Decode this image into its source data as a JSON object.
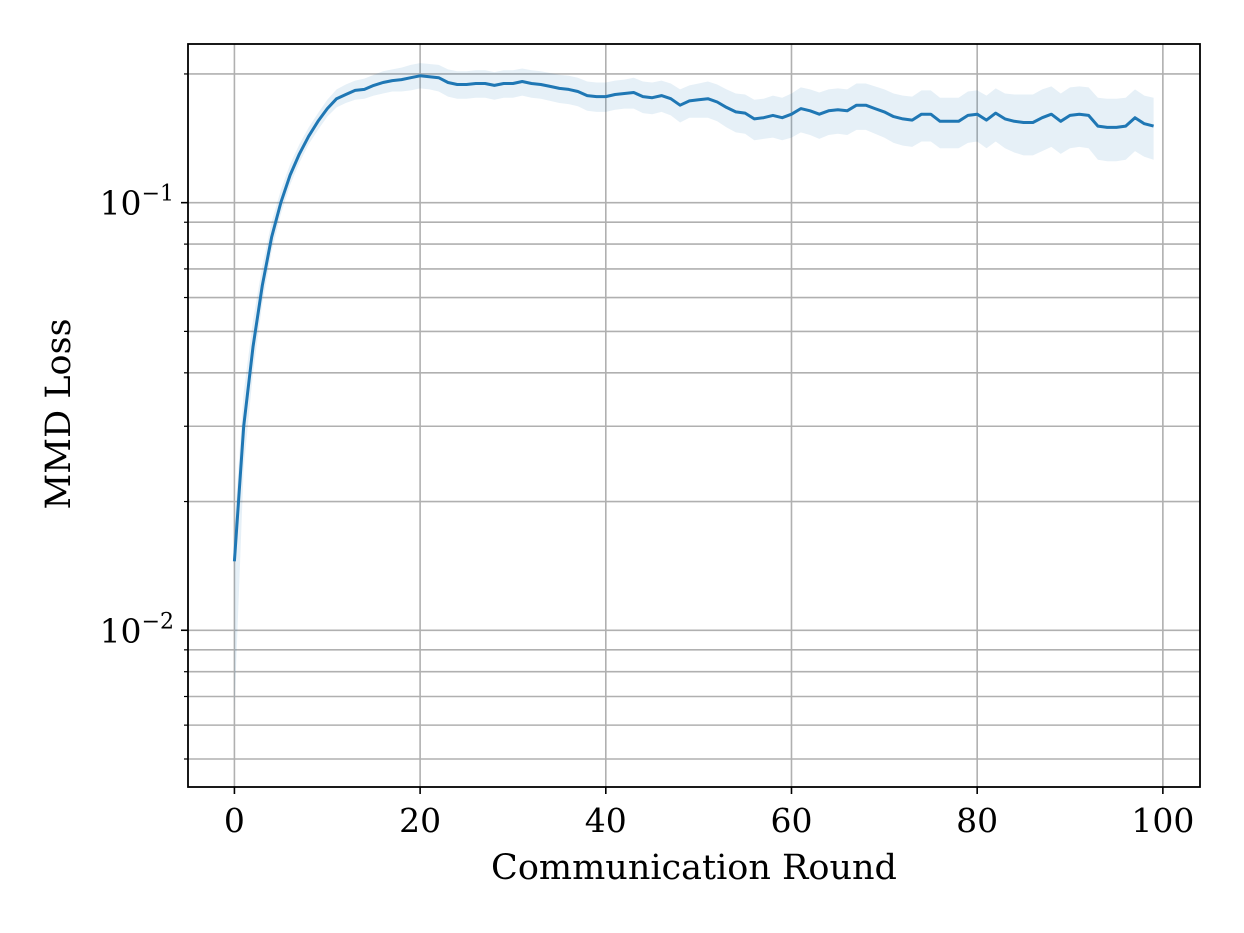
{
  "chart_data": {
    "type": "line",
    "xlabel": "Communication Round",
    "ylabel": "MMD Loss",
    "xlim": [
      -5,
      104
    ],
    "ylim": [
      0.0043,
      0.235
    ],
    "yscale": "log",
    "grid": true,
    "x_ticks": [
      0,
      20,
      40,
      60,
      80,
      100
    ],
    "x_tick_labels": [
      "0",
      "20",
      "40",
      "60",
      "80",
      "100"
    ],
    "y_major_ticks": [
      {
        "value": 0.01,
        "label_base": "10",
        "label_exp": "−2"
      },
      {
        "value": 0.1,
        "label_base": "10",
        "label_exp": "−1"
      }
    ],
    "y_minor_ticks": [
      0.005,
      0.006,
      0.007,
      0.008,
      0.009,
      0.02,
      0.03,
      0.04,
      0.05,
      0.06,
      0.07,
      0.08,
      0.09,
      0.2
    ],
    "colors": {
      "line": "#1f77b4",
      "band": "#1f77b4",
      "grid": "#b0b0b0",
      "axes": "#000000"
    },
    "series": [
      {
        "x": [
          0,
          1,
          2,
          3,
          4,
          5,
          6,
          7,
          8,
          9,
          10,
          11,
          12,
          13,
          14,
          15,
          16,
          17,
          18,
          19,
          20,
          21,
          22,
          23,
          24,
          25,
          26,
          27,
          28,
          29,
          30,
          31,
          32,
          33,
          34,
          35,
          36,
          37,
          38,
          39,
          40,
          41,
          42,
          43,
          44,
          45,
          46,
          47,
          48,
          49,
          50,
          51,
          52,
          53,
          54,
          55,
          56,
          57,
          58,
          59,
          60,
          61,
          62,
          63,
          64,
          65,
          66,
          67,
          68,
          69,
          70,
          71,
          72,
          73,
          74,
          75,
          76,
          77,
          78,
          79,
          80,
          81,
          82,
          83,
          84,
          85,
          86,
          87,
          88,
          89,
          90,
          91,
          92,
          93,
          94,
          95,
          96,
          97,
          98,
          99
        ],
        "y": [
          0.0145,
          0.03,
          0.046,
          0.064,
          0.083,
          0.1,
          0.116,
          0.13,
          0.143,
          0.155,
          0.166,
          0.175,
          0.179,
          0.183,
          0.184,
          0.188,
          0.191,
          0.193,
          0.194,
          0.196,
          0.198,
          0.197,
          0.196,
          0.191,
          0.189,
          0.189,
          0.19,
          0.19,
          0.188,
          0.19,
          0.19,
          0.192,
          0.19,
          0.189,
          0.187,
          0.185,
          0.184,
          0.182,
          0.178,
          0.177,
          0.177,
          0.179,
          0.18,
          0.181,
          0.177,
          0.176,
          0.178,
          0.175,
          0.169,
          0.173,
          0.174,
          0.175,
          0.172,
          0.167,
          0.163,
          0.162,
          0.157,
          0.158,
          0.16,
          0.158,
          0.161,
          0.166,
          0.164,
          0.161,
          0.164,
          0.165,
          0.164,
          0.169,
          0.169,
          0.166,
          0.163,
          0.159,
          0.157,
          0.156,
          0.161,
          0.161,
          0.155,
          0.155,
          0.155,
          0.16,
          0.161,
          0.156,
          0.162,
          0.157,
          0.155,
          0.154,
          0.154,
          0.158,
          0.161,
          0.155,
          0.16,
          0.161,
          0.16,
          0.151,
          0.15,
          0.15,
          0.151,
          0.158,
          0.153,
          0.151
        ],
        "lower": [
          0.0065,
          0.024,
          0.04,
          0.058,
          0.077,
          0.094,
          0.11,
          0.124,
          0.137,
          0.148,
          0.159,
          0.167,
          0.171,
          0.174,
          0.175,
          0.178,
          0.18,
          0.182,
          0.182,
          0.183,
          0.185,
          0.184,
          0.182,
          0.177,
          0.175,
          0.175,
          0.176,
          0.176,
          0.174,
          0.176,
          0.176,
          0.178,
          0.176,
          0.175,
          0.173,
          0.171,
          0.17,
          0.168,
          0.164,
          0.163,
          0.163,
          0.165,
          0.166,
          0.166,
          0.162,
          0.161,
          0.163,
          0.16,
          0.154,
          0.158,
          0.158,
          0.158,
          0.155,
          0.15,
          0.146,
          0.145,
          0.14,
          0.141,
          0.142,
          0.14,
          0.142,
          0.146,
          0.144,
          0.141,
          0.144,
          0.145,
          0.144,
          0.148,
          0.148,
          0.145,
          0.142,
          0.138,
          0.136,
          0.135,
          0.139,
          0.139,
          0.134,
          0.134,
          0.134,
          0.138,
          0.139,
          0.134,
          0.139,
          0.134,
          0.131,
          0.129,
          0.129,
          0.132,
          0.135,
          0.13,
          0.134,
          0.135,
          0.134,
          0.126,
          0.125,
          0.125,
          0.126,
          0.132,
          0.128,
          0.126
        ],
        "upper": [
          0.0175,
          0.036,
          0.053,
          0.071,
          0.09,
          0.107,
          0.123,
          0.137,
          0.15,
          0.162,
          0.174,
          0.184,
          0.189,
          0.193,
          0.195,
          0.199,
          0.203,
          0.205,
          0.207,
          0.21,
          0.212,
          0.211,
          0.21,
          0.205,
          0.203,
          0.203,
          0.204,
          0.204,
          0.202,
          0.204,
          0.204,
          0.206,
          0.204,
          0.203,
          0.201,
          0.199,
          0.198,
          0.196,
          0.192,
          0.191,
          0.191,
          0.193,
          0.194,
          0.196,
          0.192,
          0.191,
          0.193,
          0.19,
          0.184,
          0.188,
          0.19,
          0.192,
          0.189,
          0.184,
          0.18,
          0.179,
          0.174,
          0.175,
          0.178,
          0.176,
          0.18,
          0.186,
          0.184,
          0.181,
          0.184,
          0.185,
          0.184,
          0.19,
          0.19,
          0.187,
          0.184,
          0.18,
          0.178,
          0.177,
          0.183,
          0.183,
          0.176,
          0.176,
          0.176,
          0.182,
          0.183,
          0.178,
          0.185,
          0.18,
          0.179,
          0.179,
          0.179,
          0.184,
          0.187,
          0.18,
          0.186,
          0.187,
          0.186,
          0.176,
          0.175,
          0.175,
          0.176,
          0.184,
          0.178,
          0.176
        ]
      }
    ]
  }
}
